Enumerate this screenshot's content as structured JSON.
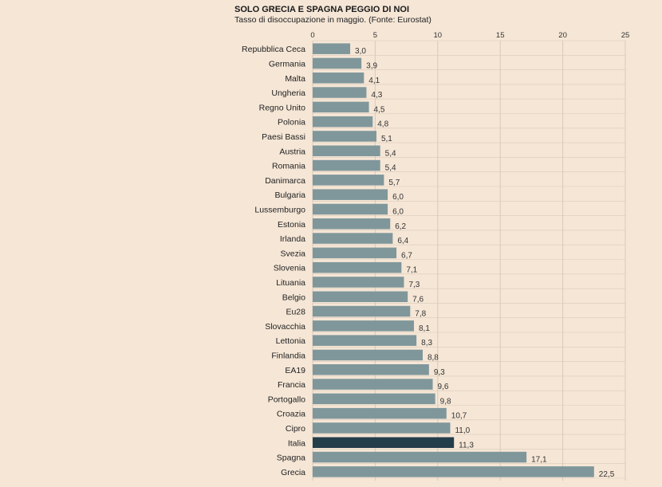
{
  "chart_data": {
    "type": "bar",
    "orientation": "horizontal",
    "title": "SOLO GRECIA E SPAGNA PEGGIO DI NOI",
    "subtitle": "Tasso di disoccupazione in maggio. (Fonte: Eurostat)",
    "xlim": [
      0,
      25
    ],
    "xticks": [
      "0",
      "5",
      "10",
      "15",
      "20",
      "25"
    ],
    "grid": true,
    "categories": [
      "Repubblica Ceca",
      "Germania",
      "Malta",
      "Ungheria",
      "Regno Unito",
      "Polonia",
      "Paesi Bassi",
      "Austria",
      "Romania",
      "Danimarca",
      "Bulgaria",
      "Lussemburgo",
      "Estonia",
      "Irlanda",
      "Svezia",
      "Slovenia",
      "Lituania",
      "Belgio",
      "Eu28",
      "Slovacchia",
      "Lettonia",
      "Finlandia",
      "EA19",
      "Francia",
      "Portogallo",
      "Croazia",
      "Cipro",
      "Italia",
      "Spagna",
      "Grecia"
    ],
    "values": [
      3.0,
      3.9,
      4.1,
      4.3,
      4.5,
      4.8,
      5.1,
      5.4,
      5.4,
      5.7,
      6.0,
      6.0,
      6.2,
      6.4,
      6.7,
      7.1,
      7.3,
      7.6,
      7.8,
      8.1,
      8.3,
      8.8,
      9.3,
      9.6,
      9.8,
      10.7,
      11.0,
      11.3,
      17.1,
      22.5
    ],
    "value_labels": [
      "3,0",
      "3,9",
      "4,1",
      "4,3",
      "4,5",
      "4,8",
      "5,1",
      "5,4",
      "5,4",
      "5,7",
      "6,0",
      "6,0",
      "6,2",
      "6,4",
      "6,7",
      "7,1",
      "7,3",
      "7,6",
      "7,8",
      "8,1",
      "8,3",
      "8,8",
      "9,3",
      "9,6",
      "9,8",
      "10,7",
      "11,0",
      "11,3",
      "17,1",
      "22,5"
    ],
    "highlight": "Italia",
    "colors": {
      "bar": "#7f979b",
      "highlight": "#243d4b",
      "grid": "#d9c9b8",
      "background": "#f5e6d6"
    }
  }
}
